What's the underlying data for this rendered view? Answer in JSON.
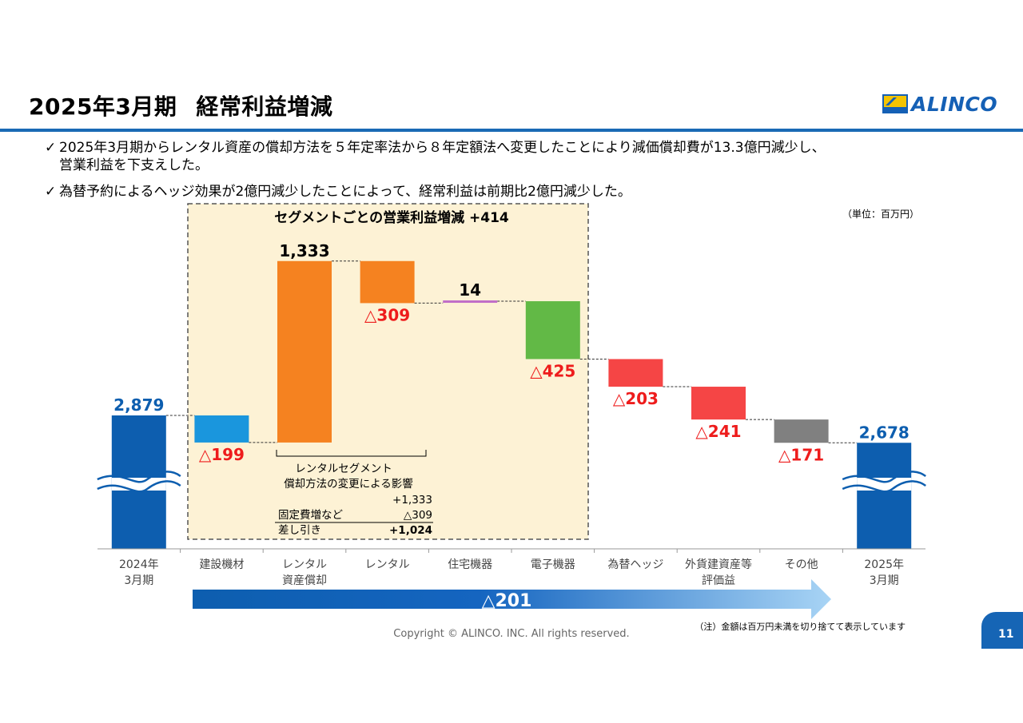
{
  "header": {
    "title_period": "2025年3月期",
    "title_subject": "経常利益増減",
    "logo_text": "ALINCO",
    "logo_mark_text": "ALINCO"
  },
  "bullets": {
    "check": "✓",
    "b1_line1": "2025年3月期からレンタル資産の償却方法を５年定率法から８年定額法へ変更したことにより減価償却費が13.3億円減少し、",
    "b1_line2": "営業利益を下支えした。",
    "b2": "為替予約によるヘッジ効果が2億円減少したことによって、経常利益は前期比2億円減少した。"
  },
  "chart_data": {
    "type": "waterfall",
    "unit_note": "（単位：百万円）",
    "segment_box_title": "セグメントごとの営業利益増減 +414",
    "categories": [
      "2024年\n3月期",
      "建設機材",
      "レンタル\n資産償却",
      "レンタル",
      "住宅機器",
      "電子機器",
      "為替ヘッジ",
      "外貨建資産等\n評価益",
      "その他",
      "2025年\n3月期"
    ],
    "items": [
      {
        "kind": "total",
        "value": 2879,
        "label": "2,879",
        "color": "#0d5eaf",
        "label_color": "#0d5eaf"
      },
      {
        "kind": "delta",
        "value": -199,
        "label": "△199",
        "color": "#1a96dd",
        "label_color": "#ee1c1c"
      },
      {
        "kind": "delta",
        "value": 1333,
        "label": "1,333",
        "color": "#f58220",
        "label_color": "#000000"
      },
      {
        "kind": "delta",
        "value": -309,
        "label": "△309",
        "color": "#f58220",
        "label_color": "#ee1c1c"
      },
      {
        "kind": "delta",
        "value": 14,
        "label": "14",
        "color": "#c06ec8",
        "label_color": "#000000"
      },
      {
        "kind": "delta",
        "value": -425,
        "label": "△425",
        "color": "#62b946",
        "label_color": "#ee1c1c"
      },
      {
        "kind": "delta",
        "value": -203,
        "label": "△203",
        "color": "#f54545",
        "label_color": "#ee1c1c"
      },
      {
        "kind": "delta",
        "value": -241,
        "label": "△241",
        "color": "#f54545",
        "label_color": "#ee1c1c"
      },
      {
        "kind": "delta",
        "value": -171,
        "label": "△171",
        "color": "#808080",
        "label_color": "#ee1c1c"
      },
      {
        "kind": "total",
        "value": 2678,
        "label": "2,678",
        "color": "#0d5eaf",
        "label_color": "#0d5eaf"
      }
    ],
    "axis_break": true,
    "rental_note": {
      "line1": "レンタルセグメント",
      "line2": "償却方法の変更による影響",
      "line3": "+1,333",
      "row1_label": "固定費増など",
      "row1_value": "△309",
      "row2_label": "差し引き",
      "row2_value": "+1,024"
    },
    "arrow_label": "△201",
    "footnote": "（注）金額は百万円未満を切り捨てて表示しています"
  },
  "footer": {
    "copyright": "Copyright © ALINCO. INC. All rights reserved.",
    "page_number": "11"
  }
}
